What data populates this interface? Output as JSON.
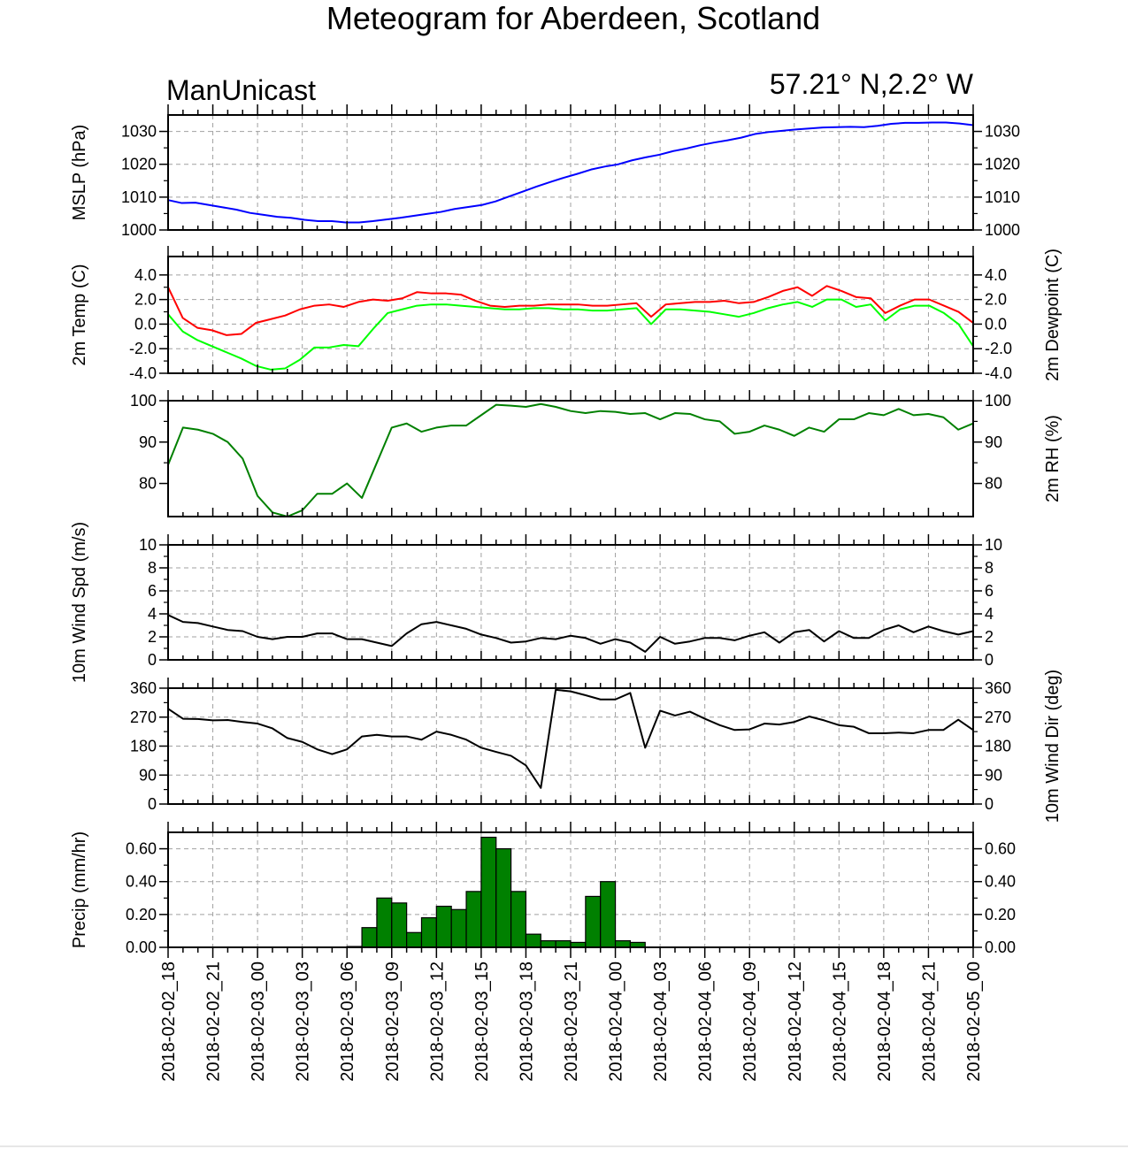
{
  "title": "Meteogram for Aberdeen, Scotland",
  "model": "ManUnicast",
  "location": "57.21° N,2.2° W",
  "x_axis": {
    "tick_labels": [
      "2018-02-02_18",
      "2018-02-02_21",
      "2018-02-03_00",
      "2018-02-03_03",
      "2018-02-03_06",
      "2018-02-03_09",
      "2018-02-03_12",
      "2018-02-03_15",
      "2018-02-03_18",
      "2018-02-03_21",
      "2018-02-04_00",
      "2018-02-04_03",
      "2018-02-04_06",
      "2018-02-04_09",
      "2018-02-04_12",
      "2018-02-04_15",
      "2018-02-04_18",
      "2018-02-04_21",
      "2018-02-05_00"
    ]
  },
  "chart_data": [
    {
      "type": "line",
      "ylabel_left": "MSLP (hPa)",
      "ylabel_right": "",
      "ylim": [
        1000,
        1035
      ],
      "yticks": [
        1000,
        1010,
        1020,
        1030
      ],
      "ytick_labels": [
        "1000",
        "1010",
        "1020",
        "1030"
      ],
      "grid": true,
      "series": [
        {
          "color": "#0000ff",
          "values": [
            1009.1,
            1008.2,
            1008.3,
            1007.6,
            1006.9,
            1006.2,
            1005.2,
            1004.6,
            1004.0,
            1003.7,
            1003.1,
            1002.7,
            1002.7,
            1002.3,
            1002.3,
            1002.7,
            1003.2,
            1003.7,
            1004.3,
            1004.9,
            1005.5,
            1006.4,
            1007.0,
            1007.6,
            1008.7,
            1010.2,
            1011.7,
            1013.2,
            1014.6,
            1015.9,
            1017.1,
            1018.4,
            1019.3,
            1020.0,
            1021.2,
            1022.1,
            1022.9,
            1024.0,
            1024.8,
            1025.8,
            1026.6,
            1027.3,
            1028.1,
            1029.2,
            1029.8,
            1030.2,
            1030.6,
            1030.9,
            1031.2,
            1031.3,
            1031.4,
            1031.3,
            1031.7,
            1032.3,
            1032.6,
            1032.6,
            1032.7,
            1032.7,
            1032.4,
            1031.9
          ]
        }
      ]
    },
    {
      "type": "line",
      "ylabel_left": "2m Temp (C)",
      "ylabel_right": "2m Dewpoint (C)",
      "ylim": [
        -4,
        5.5
      ],
      "yticks": [
        -4,
        -2,
        0,
        2,
        4
      ],
      "ytick_labels": [
        "-4.0",
        "-2.0",
        "0.0",
        "2.0",
        "4.0"
      ],
      "grid": true,
      "series": [
        {
          "color": "#ff0000",
          "values": [
            3.0,
            0.5,
            -0.3,
            -0.5,
            -0.9,
            -0.8,
            0.1,
            0.4,
            0.7,
            1.2,
            1.5,
            1.6,
            1.4,
            1.8,
            2.0,
            1.9,
            2.1,
            2.6,
            2.5,
            2.5,
            2.4,
            1.9,
            1.5,
            1.4,
            1.5,
            1.5,
            1.6,
            1.6,
            1.6,
            1.5,
            1.5,
            1.6,
            1.7,
            0.6,
            1.6,
            1.7,
            1.8,
            1.8,
            1.9,
            1.7,
            1.8,
            2.2,
            2.7,
            3.0,
            2.3,
            3.1,
            2.7,
            2.2,
            2.1,
            0.9,
            1.5,
            2.0,
            2.0,
            1.5,
            1.0,
            0.1
          ]
        },
        {
          "color": "#00ff00",
          "values": [
            0.8,
            -0.6,
            -1.3,
            -1.8,
            -2.3,
            -2.8,
            -3.4,
            -3.7,
            -3.6,
            -2.9,
            -1.9,
            -1.9,
            -1.7,
            -1.8,
            -0.4,
            0.9,
            1.2,
            1.5,
            1.6,
            1.6,
            1.5,
            1.4,
            1.3,
            1.2,
            1.2,
            1.3,
            1.3,
            1.2,
            1.2,
            1.1,
            1.1,
            1.2,
            1.3,
            0.0,
            1.2,
            1.2,
            1.1,
            1.0,
            0.8,
            0.6,
            0.9,
            1.3,
            1.6,
            1.8,
            1.4,
            2.0,
            2.0,
            1.4,
            1.6,
            0.3,
            1.2,
            1.5,
            1.5,
            0.9,
            0.0,
            -1.8
          ]
        }
      ]
    },
    {
      "type": "line",
      "ylabel_left": "",
      "ylabel_right": "2m RH (%)",
      "ylim": [
        72,
        100
      ],
      "yticks": [
        80,
        90,
        100
      ],
      "ytick_labels": [
        "80",
        "90",
        "100"
      ],
      "grid": false,
      "series": [
        {
          "color": "#008000",
          "values": [
            84.5,
            93.5,
            93.0,
            92.0,
            90.0,
            86.0,
            77.0,
            73.0,
            72.0,
            73.5,
            77.5,
            77.5,
            80.0,
            76.5,
            85.0,
            93.5,
            94.5,
            92.5,
            93.5,
            94.0,
            94.0,
            96.5,
            99.0,
            98.8,
            98.5,
            99.2,
            98.5,
            97.5,
            97.0,
            97.5,
            97.3,
            96.8,
            97.0,
            95.5,
            97.0,
            96.8,
            95.5,
            95.0,
            92.0,
            92.5,
            94.0,
            93.0,
            91.5,
            93.5,
            92.5,
            95.5,
            95.5,
            97.0,
            96.5,
            98.0,
            96.5,
            96.8,
            96.0,
            93.0,
            94.5
          ]
        }
      ]
    },
    {
      "type": "line",
      "ylabel_left": "10m Wind Spd (m/s)",
      "ylabel_right": "",
      "ylim": [
        0,
        10
      ],
      "yticks": [
        0,
        2,
        4,
        6,
        8,
        10
      ],
      "ytick_labels": [
        "0",
        "2",
        "4",
        "6",
        "8",
        "10"
      ],
      "grid": true,
      "series": [
        {
          "color": "#000000",
          "values": [
            3.9,
            3.3,
            3.2,
            2.9,
            2.6,
            2.5,
            2.0,
            1.8,
            2.0,
            2.0,
            2.3,
            2.3,
            1.8,
            1.8,
            1.5,
            1.2,
            2.3,
            3.1,
            3.3,
            3.0,
            2.7,
            2.2,
            1.9,
            1.5,
            1.6,
            1.9,
            1.8,
            2.1,
            1.9,
            1.4,
            1.8,
            1.5,
            0.7,
            2.0,
            1.4,
            1.6,
            1.9,
            1.9,
            1.7,
            2.1,
            2.4,
            1.5,
            2.4,
            2.6,
            1.6,
            2.5,
            1.9,
            1.9,
            2.6,
            3.0,
            2.4,
            2.9,
            2.5,
            2.2,
            2.5
          ]
        }
      ]
    },
    {
      "type": "line",
      "ylabel_left": "",
      "ylabel_right": "10m Wind Dir (deg)",
      "ylim": [
        0,
        360
      ],
      "yticks": [
        0,
        90,
        180,
        270,
        360
      ],
      "ytick_labels": [
        "0",
        "90",
        "180",
        "270",
        "360"
      ],
      "grid": true,
      "series": [
        {
          "color": "#000000",
          "values": [
            296,
            265,
            264,
            260,
            261,
            255,
            250,
            235,
            205,
            193,
            170,
            155,
            170,
            210,
            215,
            210,
            210,
            200,
            225,
            215,
            200,
            175,
            162,
            150,
            120,
            50,
            355,
            350,
            338,
            325,
            325,
            345,
            175,
            290,
            275,
            287,
            265,
            245,
            230,
            232,
            250,
            247,
            255,
            272,
            260,
            245,
            240,
            220,
            220,
            222,
            220,
            230,
            230,
            262,
            230
          ]
        }
      ]
    },
    {
      "type": "bar",
      "ylabel_left": "Precip (mm/hr)",
      "ylabel_right": "",
      "ylim": [
        0,
        0.7
      ],
      "yticks": [
        0,
        0.2,
        0.4,
        0.6
      ],
      "ytick_labels": [
        "0.00",
        "0.20",
        "0.40",
        "0.60"
      ],
      "grid": true,
      "bar_color": "#008000",
      "series": [
        {
          "values": [
            0,
            0,
            0,
            0,
            0,
            0,
            0,
            0,
            0,
            0,
            0,
            0,
            0.005,
            0.12,
            0.3,
            0.27,
            0.09,
            0.18,
            0.25,
            0.23,
            0.34,
            0.67,
            0.6,
            0.34,
            0.08,
            0.04,
            0.04,
            0.03,
            0.31,
            0.4,
            0.04,
            0.03,
            0,
            0,
            0,
            0,
            0,
            0,
            0,
            0,
            0,
            0,
            0,
            0,
            0,
            0,
            0,
            0,
            0,
            0,
            0,
            0,
            0,
            0
          ]
        }
      ]
    }
  ]
}
